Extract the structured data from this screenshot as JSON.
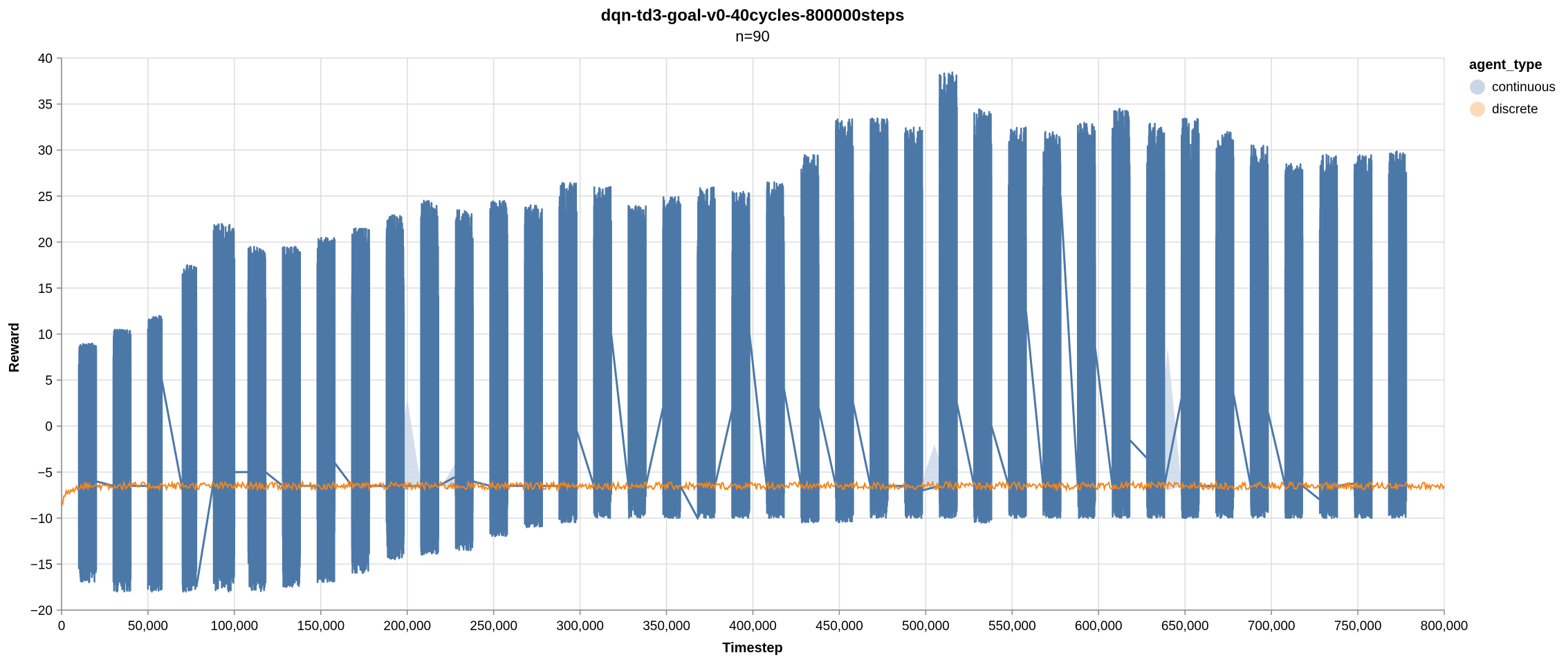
{
  "chart_data": {
    "type": "line",
    "title": "dqn-td3-goal-v0-40cycles-800000steps",
    "subtitle": "n=90",
    "xlabel": "Timestep",
    "ylabel": "Reward",
    "xlim": [
      0,
      800000
    ],
    "ylim": [
      -20,
      40
    ],
    "x_ticks": [
      0,
      50000,
      100000,
      150000,
      200000,
      250000,
      300000,
      350000,
      400000,
      450000,
      500000,
      550000,
      600000,
      650000,
      700000,
      750000,
      800000
    ],
    "x_tick_labels": [
      "0",
      "50,000",
      "100,000",
      "150,000",
      "200,000",
      "250,000",
      "300,000",
      "350,000",
      "400,000",
      "450,000",
      "500,000",
      "550,000",
      "600,000",
      "650,000",
      "700,000",
      "750,000",
      "800,000"
    ],
    "y_ticks": [
      -20,
      -15,
      -10,
      -5,
      0,
      5,
      10,
      15,
      20,
      25,
      30,
      35,
      40
    ],
    "y_tick_labels": [
      "−20",
      "−15",
      "−10",
      "−5",
      "0",
      "5",
      "10",
      "15",
      "20",
      "25",
      "30",
      "35",
      "40"
    ],
    "grid": true,
    "legend": {
      "title": "agent_type",
      "placement": "top-right",
      "entries": [
        {
          "label": "continuous",
          "color": "#4c78a8"
        },
        {
          "label": "discrete",
          "color": "#f58518"
        }
      ]
    },
    "series": [
      {
        "name": "continuous",
        "color": "#4c78a8",
        "band_color": "#c9d7e8",
        "bursts": [
          {
            "x_start": 10000,
            "x_end": 20000,
            "min": -17,
            "max": 9
          },
          {
            "x_start": 30000,
            "x_end": 40000,
            "min": -18,
            "max": 10.5
          },
          {
            "x_start": 50000,
            "x_end": 58000,
            "min": -18,
            "max": 12
          },
          {
            "x_start": 70000,
            "x_end": 78000,
            "min": -18,
            "max": 17.5
          },
          {
            "x_start": 88000,
            "x_end": 100000,
            "min": -18,
            "max": 22
          },
          {
            "x_start": 108000,
            "x_end": 118000,
            "min": -18,
            "max": 19.5
          },
          {
            "x_start": 128000,
            "x_end": 138000,
            "min": -17.5,
            "max": 19.5
          },
          {
            "x_start": 148000,
            "x_end": 158000,
            "min": -17,
            "max": 20.5
          },
          {
            "x_start": 168000,
            "x_end": 178000,
            "min": -16,
            "max": 21.5
          },
          {
            "x_start": 188000,
            "x_end": 198000,
            "min": -14.5,
            "max": 23
          },
          {
            "x_start": 208000,
            "x_end": 218000,
            "min": -14,
            "max": 24.5
          },
          {
            "x_start": 228000,
            "x_end": 238000,
            "min": -13.5,
            "max": 23.5
          },
          {
            "x_start": 248000,
            "x_end": 258000,
            "min": -12,
            "max": 24.5
          },
          {
            "x_start": 268000,
            "x_end": 278000,
            "min": -11,
            "max": 24
          },
          {
            "x_start": 288000,
            "x_end": 298000,
            "min": -10.5,
            "max": 26.5
          },
          {
            "x_start": 308000,
            "x_end": 318000,
            "min": -10,
            "max": 26
          },
          {
            "x_start": 328000,
            "x_end": 338000,
            "min": -10,
            "max": 24
          },
          {
            "x_start": 348000,
            "x_end": 358000,
            "min": -10,
            "max": 25
          },
          {
            "x_start": 368000,
            "x_end": 378000,
            "min": -10,
            "max": 26
          },
          {
            "x_start": 388000,
            "x_end": 398000,
            "min": -10,
            "max": 25.5
          },
          {
            "x_start": 408000,
            "x_end": 418000,
            "min": -10,
            "max": 26.5
          },
          {
            "x_start": 428000,
            "x_end": 438000,
            "min": -10.5,
            "max": 29.5
          },
          {
            "x_start": 448000,
            "x_end": 458000,
            "min": -10.5,
            "max": 33.5
          },
          {
            "x_start": 468000,
            "x_end": 478000,
            "min": -10,
            "max": 33.5
          },
          {
            "x_start": 488000,
            "x_end": 498000,
            "min": -10,
            "max": 32.5
          },
          {
            "x_start": 508000,
            "x_end": 518000,
            "min": -10,
            "max": 38.5
          },
          {
            "x_start": 528000,
            "x_end": 538000,
            "min": -10.5,
            "max": 34.5
          },
          {
            "x_start": 548000,
            "x_end": 558000,
            "min": -10,
            "max": 32.5
          },
          {
            "x_start": 568000,
            "x_end": 578000,
            "min": -10,
            "max": 32
          },
          {
            "x_start": 588000,
            "x_end": 598000,
            "min": -10,
            "max": 33
          },
          {
            "x_start": 608000,
            "x_end": 618000,
            "min": -10,
            "max": 34.5
          },
          {
            "x_start": 628000,
            "x_end": 638000,
            "min": -10,
            "max": 33
          },
          {
            "x_start": 648000,
            "x_end": 658000,
            "min": -10,
            "max": 33.5
          },
          {
            "x_start": 668000,
            "x_end": 678000,
            "min": -10,
            "max": 32
          },
          {
            "x_start": 688000,
            "x_end": 698000,
            "min": -10,
            "max": 30.5
          },
          {
            "x_start": 708000,
            "x_end": 718000,
            "min": -10,
            "max": 28.5
          },
          {
            "x_start": 728000,
            "x_end": 738000,
            "min": -10,
            "max": 29.5
          },
          {
            "x_start": 748000,
            "x_end": 758000,
            "min": -10,
            "max": 29.5
          },
          {
            "x_start": 768000,
            "x_end": 778000,
            "min": -10,
            "max": 30
          }
        ],
        "connectors": [
          [
            20000,
            -6
          ],
          [
            30000,
            -6.5
          ],
          [
            40000,
            -6.5
          ],
          [
            50000,
            -6.5
          ],
          [
            58000,
            5
          ],
          [
            70000,
            -7
          ],
          [
            78000,
            -17.5
          ],
          [
            88000,
            -6
          ],
          [
            100000,
            -5
          ],
          [
            118000,
            -5
          ],
          [
            128000,
            -6.5
          ],
          [
            138000,
            -6.5
          ],
          [
            148000,
            -6.5
          ],
          [
            158000,
            -4
          ],
          [
            168000,
            -6.5
          ],
          [
            178000,
            -6.5
          ],
          [
            188000,
            -6.5
          ],
          [
            198000,
            -6.5
          ],
          [
            208000,
            -6.5
          ],
          [
            218000,
            -6.5
          ],
          [
            228000,
            -5.5
          ],
          [
            238000,
            -6
          ],
          [
            248000,
            -6.5
          ],
          [
            258000,
            -6.5
          ],
          [
            268000,
            -6.5
          ],
          [
            278000,
            -6.5
          ],
          [
            288000,
            -6.5
          ],
          [
            298000,
            -0.5
          ],
          [
            308000,
            -6.5
          ],
          [
            318000,
            10
          ],
          [
            328000,
            -6.5
          ],
          [
            338000,
            -6.5
          ],
          [
            348000,
            2
          ],
          [
            358000,
            -6.5
          ],
          [
            368000,
            -10
          ],
          [
            378000,
            -6.5
          ],
          [
            398000,
            10
          ],
          [
            408000,
            -6.5
          ],
          [
            418000,
            4
          ],
          [
            428000,
            -6.5
          ],
          [
            438000,
            2
          ],
          [
            448000,
            -6.5
          ],
          [
            458000,
            2.5
          ],
          [
            468000,
            -6.5
          ],
          [
            488000,
            -6.5
          ],
          [
            498000,
            -7
          ],
          [
            508000,
            -6.5
          ],
          [
            518000,
            2.5
          ],
          [
            528000,
            -6.5
          ],
          [
            538000,
            0
          ],
          [
            548000,
            -6.5
          ],
          [
            558000,
            12.5
          ],
          [
            568000,
            -6.5
          ],
          [
            578000,
            25
          ],
          [
            588000,
            -6.5
          ],
          [
            598000,
            8.5
          ],
          [
            608000,
            -6.5
          ],
          [
            618000,
            -1.5
          ],
          [
            628000,
            -3.5
          ],
          [
            638000,
            -6.5
          ],
          [
            648000,
            3
          ],
          [
            658000,
            -6.5
          ],
          [
            668000,
            -6.5
          ],
          [
            678000,
            3.5
          ],
          [
            688000,
            -6.5
          ],
          [
            698000,
            1.5
          ],
          [
            708000,
            -6.5
          ],
          [
            718000,
            -6.5
          ],
          [
            728000,
            -8
          ],
          [
            738000,
            -6.5
          ],
          [
            758000,
            -6
          ]
        ],
        "uncertainty_bands": [
          {
            "x": 200000,
            "low": -7,
            "high": 3
          },
          {
            "x": 228000,
            "low": -7,
            "high": -4
          },
          {
            "x": 505000,
            "low": -7,
            "high": -2
          },
          {
            "x": 640000,
            "low": -7,
            "high": 8.5
          }
        ]
      },
      {
        "name": "discrete",
        "color": "#f58518",
        "band_color": "#fdd4a8",
        "x": [
          0,
          3000,
          5000,
          10000,
          800000
        ],
        "y": [
          -8.5,
          -7,
          -7,
          -6.5,
          -6.5
        ],
        "noise": 0.4
      }
    ]
  }
}
